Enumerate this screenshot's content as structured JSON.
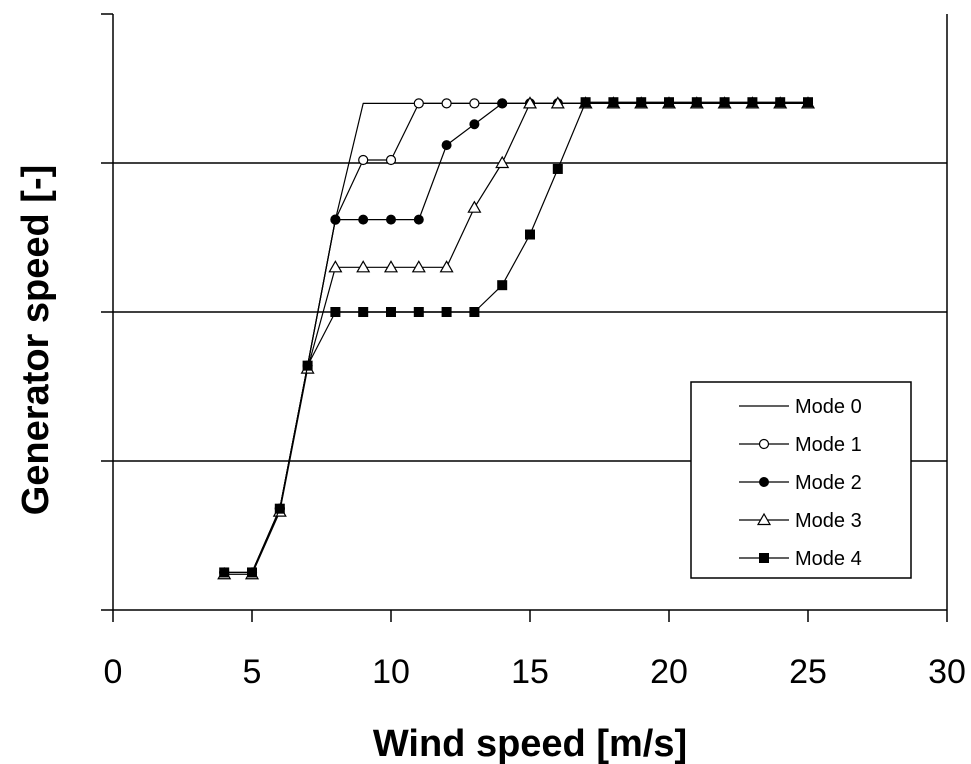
{
  "chart_data": {
    "type": "line",
    "xlabel": "Wind speed [m/s]",
    "ylabel": "Generator speed [-]",
    "xlim": [
      0,
      30
    ],
    "xticks": [
      "0",
      "5",
      "10",
      "15",
      "20",
      "25",
      "30"
    ],
    "ylim": [
      0,
      1
    ],
    "y_gridlines": [
      0.25,
      0.5,
      0.75
    ],
    "y_tick_labels_shown": false,
    "grid": "horizontal",
    "legend_position": "bottom-right",
    "series": [
      {
        "name": "Mode 0",
        "marker": "none",
        "x": [
          4,
          5,
          6,
          7,
          8,
          9,
          10,
          11,
          12,
          13,
          14,
          15,
          16,
          17,
          18,
          19,
          20,
          21,
          22,
          23,
          24,
          25
        ],
        "y": [
          0.063,
          0.063,
          0.17,
          0.41,
          0.655,
          0.85,
          0.85,
          0.85,
          0.85,
          0.85,
          0.85,
          0.85,
          0.85,
          0.85,
          0.85,
          0.85,
          0.85,
          0.85,
          0.85,
          0.85,
          0.85,
          0.85
        ]
      },
      {
        "name": "Mode 1",
        "marker": "open-circle",
        "x": [
          4,
          5,
          6,
          7,
          8,
          9,
          10,
          11,
          12,
          13,
          14,
          15,
          16,
          17,
          18,
          19,
          20,
          21,
          22,
          23,
          24,
          25
        ],
        "y": [
          0.063,
          0.063,
          0.17,
          0.41,
          0.655,
          0.755,
          0.755,
          0.85,
          0.85,
          0.85,
          0.85,
          0.85,
          0.85,
          0.85,
          0.85,
          0.85,
          0.85,
          0.85,
          0.85,
          0.85,
          0.85,
          0.85
        ]
      },
      {
        "name": "Mode 2",
        "marker": "filled-circle",
        "x": [
          4,
          5,
          6,
          7,
          8,
          9,
          10,
          11,
          12,
          13,
          14,
          15,
          16,
          17,
          18,
          19,
          20,
          21,
          22,
          23,
          24,
          25
        ],
        "y": [
          0.063,
          0.063,
          0.17,
          0.41,
          0.655,
          0.655,
          0.655,
          0.655,
          0.78,
          0.815,
          0.85,
          0.85,
          0.85,
          0.85,
          0.85,
          0.85,
          0.85,
          0.85,
          0.85,
          0.85,
          0.85,
          0.85
        ]
      },
      {
        "name": "Mode 3",
        "marker": "open-triangle",
        "x": [
          4,
          5,
          6,
          7,
          8,
          9,
          10,
          11,
          12,
          13,
          14,
          15,
          16,
          17,
          18,
          19,
          20,
          21,
          22,
          23,
          24,
          25
        ],
        "y": [
          0.06,
          0.06,
          0.165,
          0.405,
          0.575,
          0.575,
          0.575,
          0.575,
          0.575,
          0.675,
          0.75,
          0.85,
          0.85,
          0.85,
          0.85,
          0.85,
          0.85,
          0.85,
          0.85,
          0.85,
          0.85,
          0.85
        ]
      },
      {
        "name": "Mode 4",
        "marker": "filled-square",
        "x": [
          4,
          5,
          6,
          7,
          8,
          9,
          10,
          11,
          12,
          13,
          14,
          15,
          16,
          17,
          18,
          19,
          20,
          21,
          22,
          23,
          24,
          25
        ],
        "y": [
          0.063,
          0.063,
          0.17,
          0.41,
          0.5,
          0.5,
          0.5,
          0.5,
          0.5,
          0.5,
          0.545,
          0.63,
          0.74,
          0.852,
          0.852,
          0.852,
          0.852,
          0.852,
          0.852,
          0.852,
          0.852,
          0.852
        ]
      }
    ]
  },
  "colors": {
    "line": "#000000",
    "background": "#ffffff"
  }
}
